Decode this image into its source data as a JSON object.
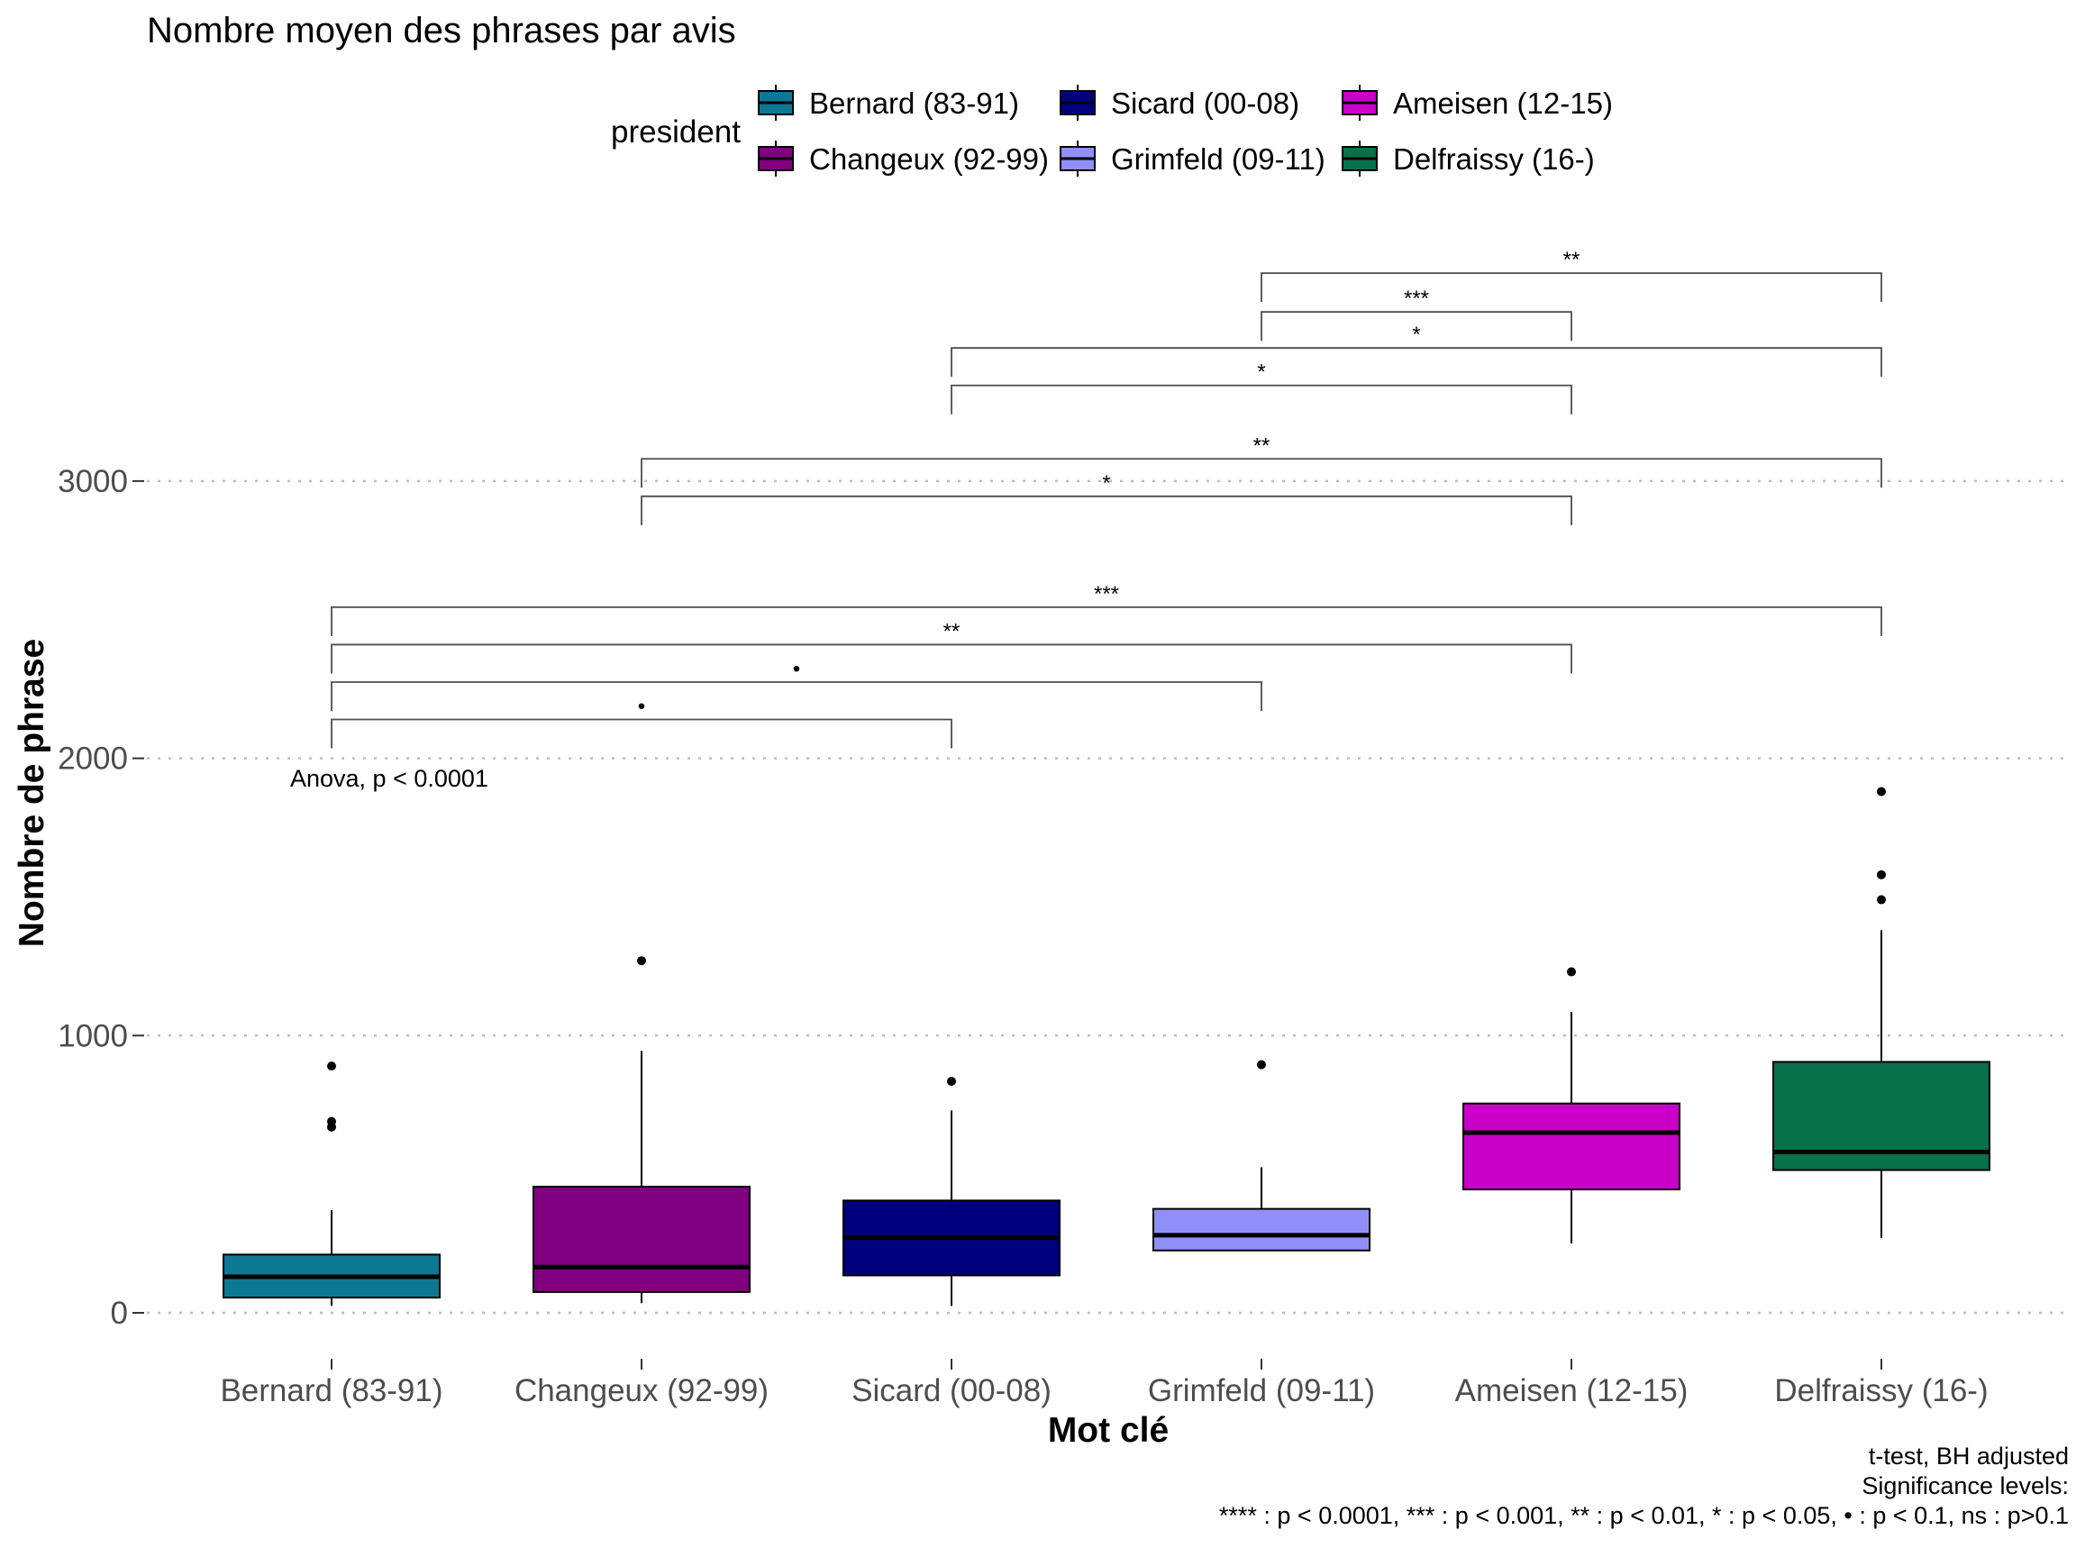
{
  "chart_data": {
    "type": "box",
    "title": "Nombre moyen des phrases par avis",
    "xlabel": "Mot clé",
    "ylabel": "Nombre de phrase",
    "ylim": [
      -120,
      3900
    ],
    "yticks": [
      0,
      1000,
      2000,
      3000
    ],
    "grid": "horizontal-dotted",
    "legend": {
      "title": "president",
      "placement": "top"
    },
    "categories": [
      "Bernard (83-91)",
      "Changeux (92-99)",
      "Sicard (00-08)",
      "Grimfeld (09-11)",
      "Ameisen (12-15)",
      "Delfraissy (16-)"
    ],
    "series": [
      {
        "name": "Bernard (83-91)",
        "color": "#0d7893",
        "whisker_low": 25,
        "q1": 55,
        "median": 130,
        "q3": 210,
        "whisker_high": 370,
        "outliers": [
          670,
          690,
          890
        ]
      },
      {
        "name": "Changeux (92-99)",
        "color": "#800080",
        "whisker_low": 35,
        "q1": 75,
        "median": 165,
        "q3": 455,
        "whisker_high": 945,
        "outliers": [
          1270
        ]
      },
      {
        "name": "Sicard (00-08)",
        "color": "#00007f",
        "whisker_low": 25,
        "q1": 135,
        "median": 270,
        "q3": 405,
        "whisker_high": 730,
        "outliers": [
          835
        ]
      },
      {
        "name": "Grimfeld (09-11)",
        "color": "#8f8ff7",
        "whisker_low": 225,
        "q1": 225,
        "median": 280,
        "q3": 375,
        "whisker_high": 525,
        "outliers": [
          895
        ]
      },
      {
        "name": "Ameisen (12-15)",
        "color": "#c800c8",
        "whisker_low": 250,
        "q1": 445,
        "median": 650,
        "q3": 755,
        "whisker_high": 1085,
        "outliers": [
          1230
        ]
      },
      {
        "name": "Delfraissy (16-)",
        "color": "#08704a",
        "whisker_low": 270,
        "q1": 515,
        "median": 580,
        "q3": 905,
        "whisker_high": 1380,
        "outliers": [
          1490,
          1580,
          1880
        ]
      }
    ],
    "annotations": {
      "anova": "Anova, p < 0.0001",
      "comparisons": [
        {
          "group1": 0,
          "group2": 2,
          "y": 2140,
          "label": "•"
        },
        {
          "group1": 0,
          "group2": 3,
          "y": 2275,
          "label": "•"
        },
        {
          "group1": 0,
          "group2": 4,
          "y": 2410,
          "label": "**"
        },
        {
          "group1": 0,
          "group2": 5,
          "y": 2545,
          "label": "***"
        },
        {
          "group1": 1,
          "group2": 4,
          "y": 2945,
          "label": "*"
        },
        {
          "group1": 1,
          "group2": 5,
          "y": 3080,
          "label": "**"
        },
        {
          "group1": 2,
          "group2": 4,
          "y": 3345,
          "label": "*"
        },
        {
          "group1": 2,
          "group2": 5,
          "y": 3480,
          "label": "*"
        },
        {
          "group1": 3,
          "group2": 4,
          "y": 3610,
          "label": "***"
        },
        {
          "group1": 3,
          "group2": 5,
          "y": 3750,
          "label": "**"
        }
      ]
    },
    "caption": [
      "t-test, BH adjusted",
      "Significance levels:",
      "**** : p < 0.0001, *** : p < 0.001, ** : p < 0.01, * : p < 0.05, • : p < 0.1, ns : p>0.1"
    ]
  }
}
